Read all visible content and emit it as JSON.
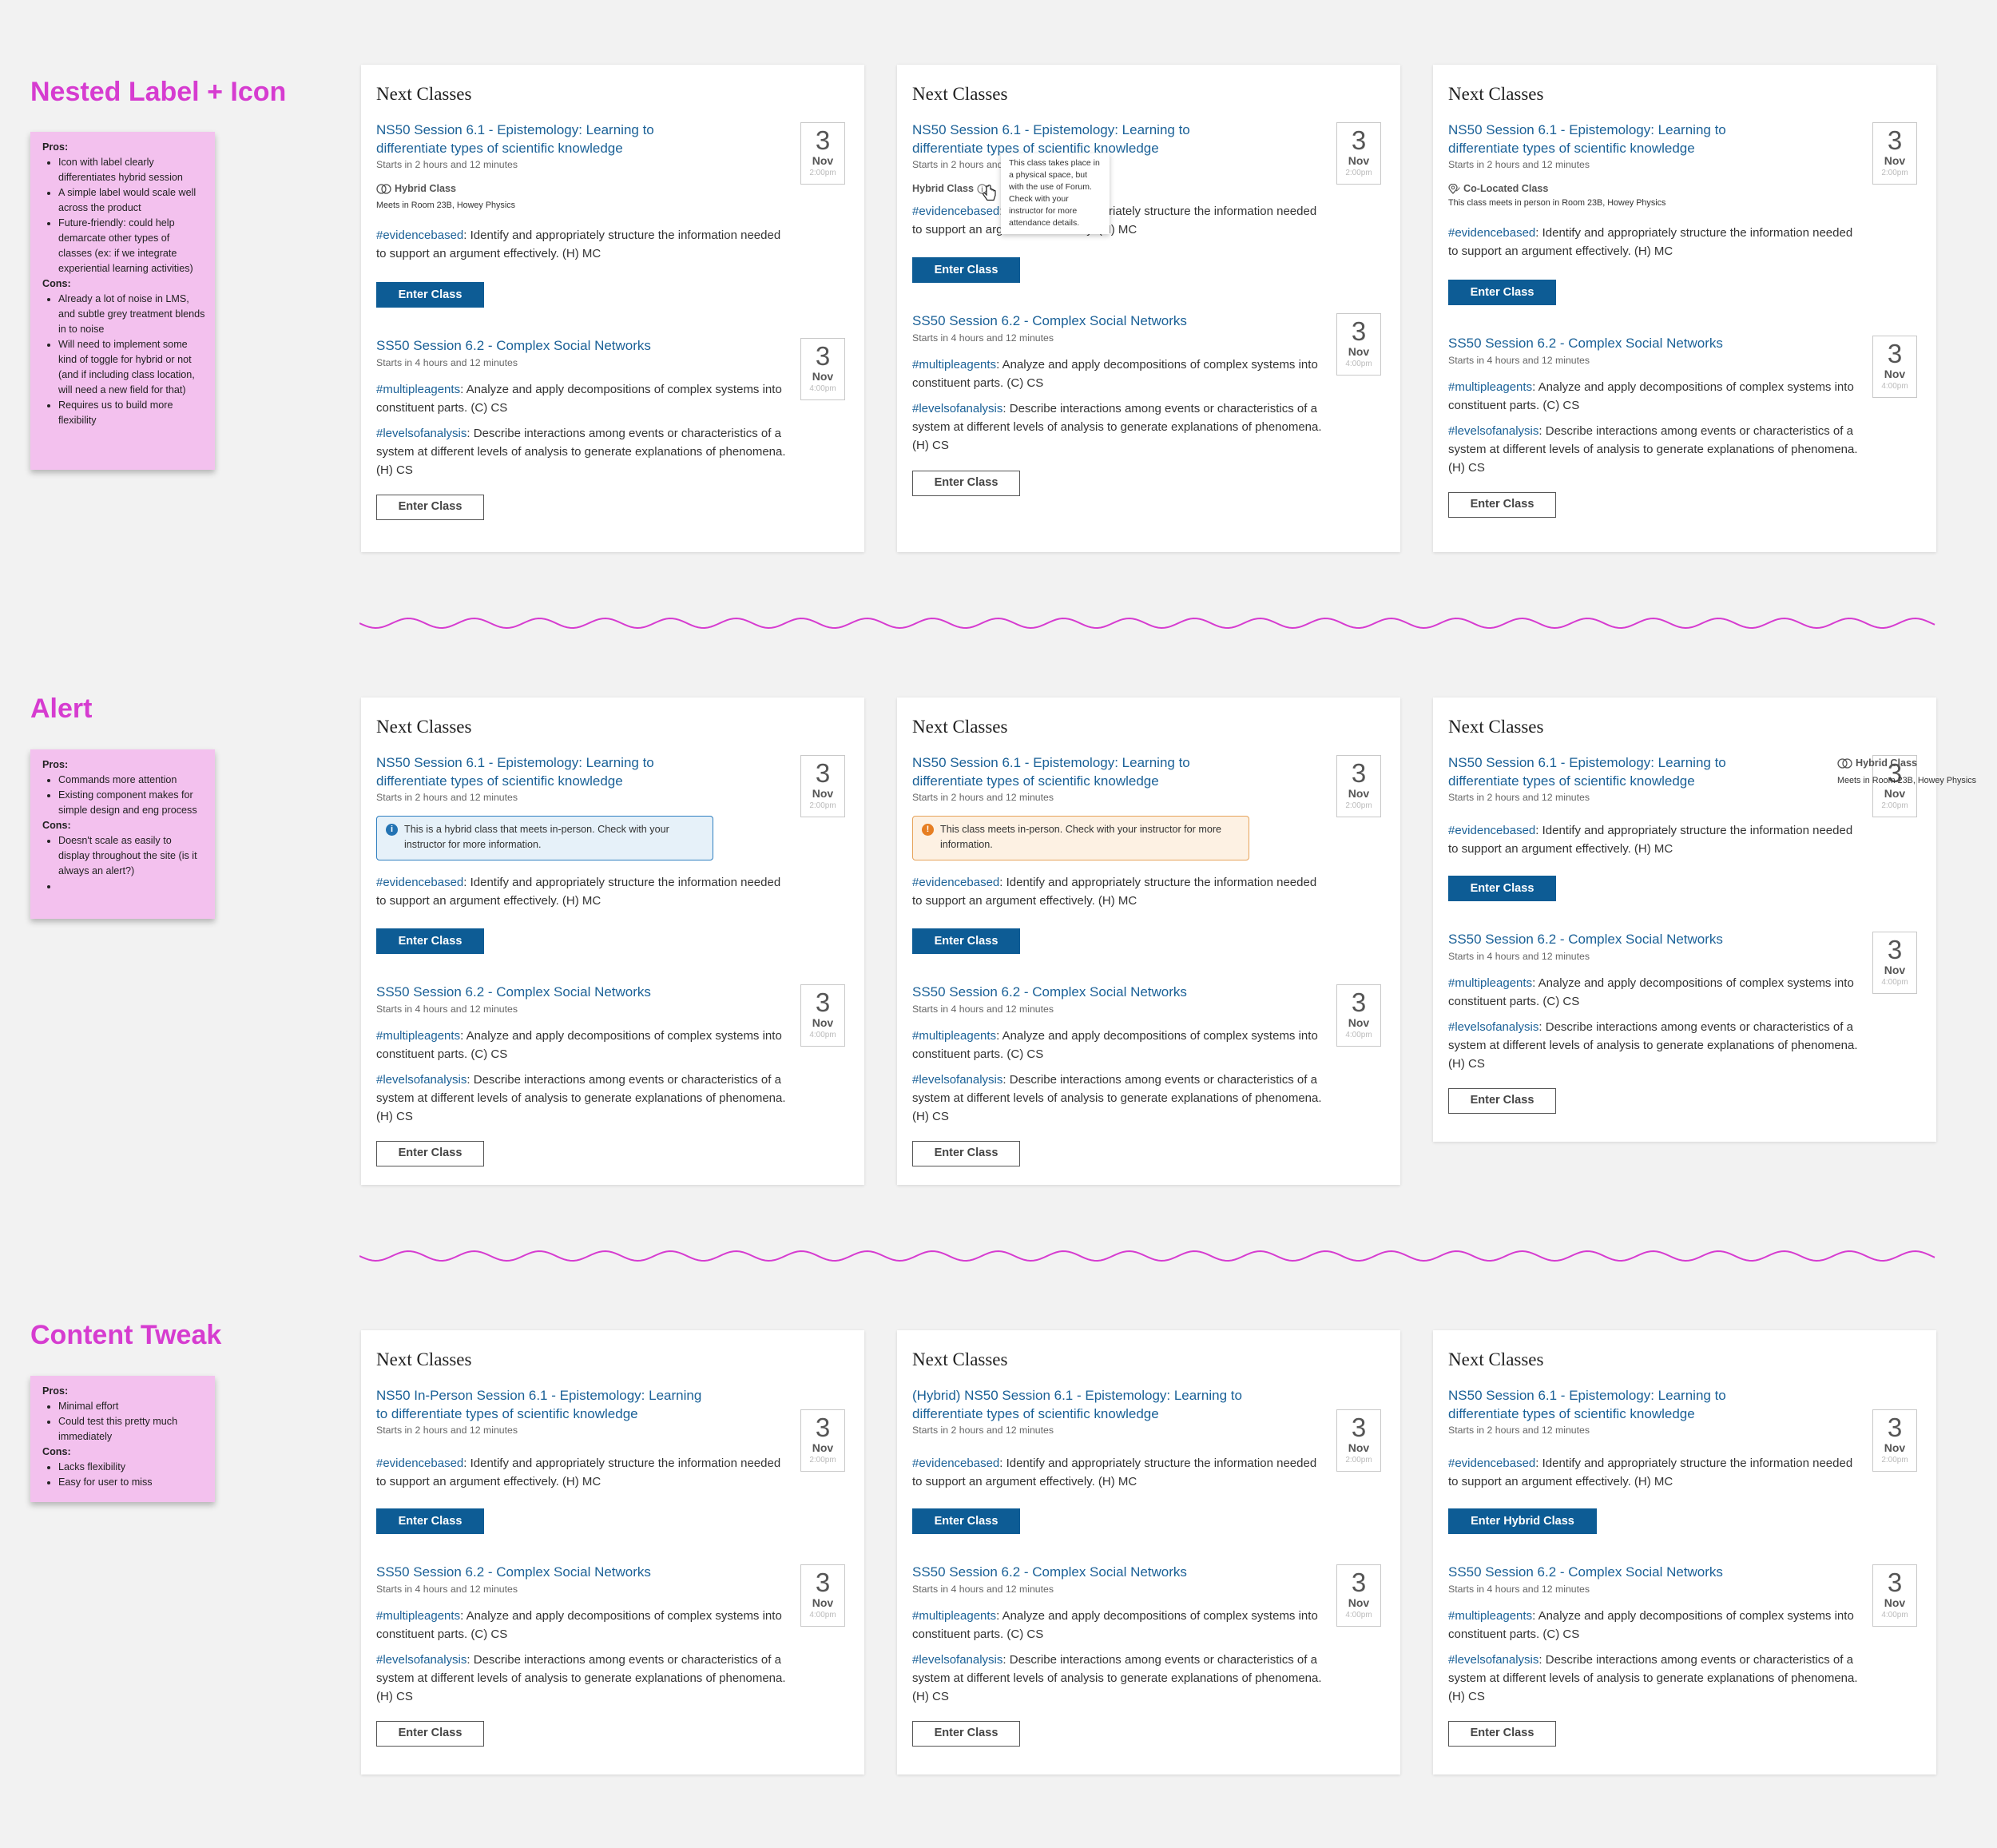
{
  "sections": [
    {
      "title": "Nested Label + Icon",
      "notes": {
        "pros_label": "Pros:",
        "pros": [
          "Icon with label clearly differentiates hybrid session",
          "A simple label would scale well across the product",
          "Future-friendly: could help demarcate other types of classes (ex: if we integrate experiential learning activities)"
        ],
        "cons_label": "Cons:",
        "cons": [
          "Already a lot of noise in LMS, and subtle grey treatment blends in to noise",
          "Will need to implement some kind of toggle for hybrid or not (and if including class location, will need a new field for that)",
          "Requires us to build more flexibility"
        ]
      }
    },
    {
      "title": "Alert",
      "notes": {
        "pros_label": "Pros:",
        "pros": [
          "Commands more attention",
          "Existing component makes for simple design and eng process"
        ],
        "cons_label": "Cons:",
        "cons": [
          "Doesn't scale as easily to display throughout the site (is it always an alert?)",
          ""
        ]
      }
    },
    {
      "title": "Content Tweak",
      "notes": {
        "pros_label": "Pros:",
        "pros": [
          "Minimal effort",
          "Could test this pretty much immediately"
        ],
        "cons_label": "Cons:",
        "cons": [
          "Lacks flexibility",
          "Easy for user to miss"
        ]
      }
    }
  ],
  "card_heading": "Next Classes",
  "common": {
    "c1_title": "NS50 Session 6.1 - Epistemology: Learning to differentiate types of scientific knowledge",
    "c1_starts": "Starts in 2 hours and 12 minutes",
    "c1_day": "3",
    "c1_month": "Nov",
    "c1_time": "2:00pm",
    "c1_tag": "#evidencebased",
    "c1_text": ": Identify and appropriately structure the information needed to support an argument effectively. (H) MC",
    "c2_title": "SS50 Session 6.2 - Complex Social Networks",
    "c2_starts": "Starts in 4 hours and 12 minutes",
    "c2_day": "3",
    "c2_month": "Nov",
    "c2_time": "4:00pm",
    "c2_tag1": "#multipleagents",
    "c2_text1": ": Analyze and apply decompositions of complex systems into constituent parts. (C) CS",
    "c2_tag2": "#levelsofanalysis",
    "c2_text2": ": Describe interactions among events or characteristics of a system at different levels of analysis to generate explanations of phenomena. (H) CS",
    "enter": "Enter Class"
  },
  "variants": {
    "hybrid_label": "Hybrid Class",
    "hybrid_sub": "Meets in Room 23B, Howey Physics",
    "hybrid_label_2": "Hybrid Class",
    "tooltip": "This class takes place in a physical space, but with the use of Forum. Check with your instructor for more attendance details.",
    "coloc_label": "Co-Located Class",
    "coloc_sub": "This class meets in person in Room 23B, Howey Physics",
    "alert_info": "This is a hybrid class that meets in-person. Check with your instructor for more information.",
    "alert_warn": "This class meets in-person. Check with your instructor for more information.",
    "float_label": "Hybrid Class",
    "float_sub": "Meets in Room 23B, Howey Physics",
    "ct_title1": "NS50 In-Person Session 6.1 - Epistemology: Learning to differentiate types of scientific knowledge",
    "ct_title2": "(Hybrid) NS50 Session 6.1 - Epistemology: Learning to differentiate types of scientific knowledge",
    "enter_hybrid": "Enter Hybrid Class"
  },
  "colors": {
    "accent": "#d63cd0",
    "link": "#1b6197",
    "primary_button": "#0d5c95",
    "sticky_note": "#f3c1ee",
    "info_border": "#2f7fc0",
    "warn_border": "#e6a35a"
  }
}
